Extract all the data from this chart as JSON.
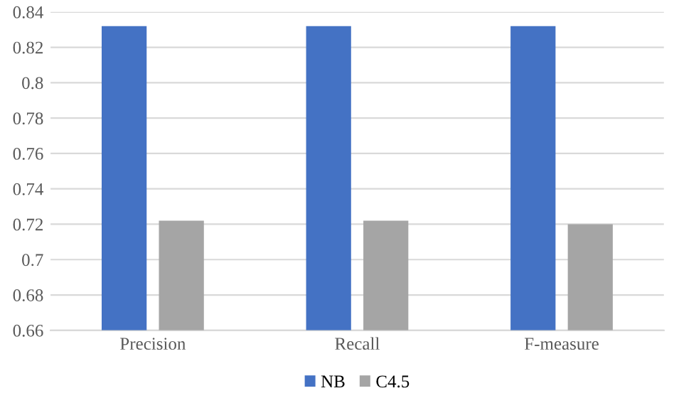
{
  "chart_data": {
    "type": "bar",
    "categories": [
      "Precision",
      "Recall",
      "F-measure"
    ],
    "series": [
      {
        "name": "NB",
        "color": "#4472c4",
        "values": [
          0.832,
          0.832,
          0.832
        ]
      },
      {
        "name": "C4.5",
        "color": "#a5a5a5",
        "values": [
          0.722,
          0.722,
          0.72
        ]
      }
    ],
    "ylim": [
      0.66,
      0.84
    ],
    "yticks": [
      0.66,
      0.68,
      0.7,
      0.72,
      0.74,
      0.76,
      0.78,
      0.8,
      0.82,
      0.84
    ],
    "grid": "y",
    "legend": "bottom"
  }
}
